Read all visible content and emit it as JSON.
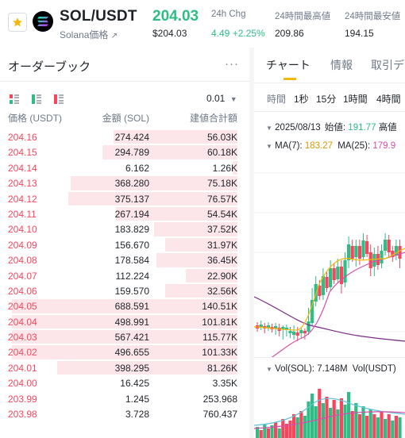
{
  "header": {
    "pair": "SOL/USDT",
    "coin_name": "Solana価格",
    "last_price": "204.03",
    "last_price_usd": "$204.03",
    "stats": [
      {
        "label": "24h Chg",
        "value": "4.49 +2.25%"
      },
      {
        "label": "24時間最高値",
        "value": "209.86"
      },
      {
        "label": "24時間最安値",
        "value": "194.15"
      }
    ]
  },
  "orderbook": {
    "title": "オーダーブック",
    "more": "···",
    "tick_size": "0.01",
    "columns": {
      "price": "価格 (USDT)",
      "amount": "金額 (SOL)",
      "total": "建値合計額"
    },
    "rows": [
      {
        "price": "204.16",
        "amount": "274.424",
        "total": "56.03K",
        "depth": 0.55,
        "side": "ask"
      },
      {
        "price": "204.15",
        "amount": "294.789",
        "total": "60.18K",
        "depth": 0.6,
        "side": "ask"
      },
      {
        "price": "204.14",
        "amount": "6.162",
        "total": "1.26K",
        "depth": 0.02,
        "side": "ask"
      },
      {
        "price": "204.13",
        "amount": "368.280",
        "total": "75.18K",
        "depth": 0.74,
        "side": "ask"
      },
      {
        "price": "204.12",
        "amount": "375.137",
        "total": "76.57K",
        "depth": 0.75,
        "side": "ask"
      },
      {
        "price": "204.11",
        "amount": "267.194",
        "total": "54.54K",
        "depth": 0.54,
        "side": "ask"
      },
      {
        "price": "204.10",
        "amount": "183.829",
        "total": "37.52K",
        "depth": 0.37,
        "side": "ask"
      },
      {
        "price": "204.09",
        "amount": "156.670",
        "total": "31.97K",
        "depth": 0.32,
        "side": "ask"
      },
      {
        "price": "204.08",
        "amount": "178.584",
        "total": "36.45K",
        "depth": 0.36,
        "side": "ask"
      },
      {
        "price": "204.07",
        "amount": "112.224",
        "total": "22.90K",
        "depth": 0.23,
        "side": "ask"
      },
      {
        "price": "204.06",
        "amount": "159.570",
        "total": "32.56K",
        "depth": 0.32,
        "side": "ask"
      },
      {
        "price": "204.05",
        "amount": "688.591",
        "total": "140.51K",
        "depth": 1.0,
        "side": "ask"
      },
      {
        "price": "204.04",
        "amount": "498.991",
        "total": "101.81K",
        "depth": 1.0,
        "side": "ask"
      },
      {
        "price": "204.03",
        "amount": "567.421",
        "total": "115.77K",
        "depth": 1.0,
        "side": "ask"
      },
      {
        "price": "204.02",
        "amount": "496.655",
        "total": "101.33K",
        "depth": 1.0,
        "side": "ask"
      },
      {
        "price": "204.01",
        "amount": "398.295",
        "total": "81.26K",
        "depth": 0.8,
        "side": "ask"
      },
      {
        "price": "204.00",
        "amount": "16.425",
        "total": "3.35K",
        "depth": 0,
        "side": "ask"
      },
      {
        "price": "203.99",
        "amount": "1.245",
        "total": "253.968",
        "depth": 0,
        "side": "ask"
      },
      {
        "price": "203.98",
        "amount": "3.728",
        "total": "760.437",
        "depth": 0,
        "side": "ask"
      }
    ]
  },
  "chart_panel": {
    "tabs": [
      "チャート",
      "情報",
      "取引デ"
    ],
    "intervals": [
      "時間",
      "1秒",
      "15分",
      "1時間",
      "4時間"
    ],
    "date_label": "2025/08/13",
    "open_label": "始値:",
    "open_value": "191.77",
    "high_label": "高値",
    "ma7_label": "MA(7):",
    "ma7_value": "183.27",
    "ma25_label": "MA(25):",
    "ma25_value": "179.9",
    "vol_label": "Vol(SOL):",
    "vol_value": "7.148M",
    "vol_usdt_label": "Vol(USDT)"
  },
  "colors": {
    "green": "#2ebd85",
    "red": "#f6465d",
    "accent": "#f0b90b",
    "ask_bar": "#fde6e9",
    "ma7": "#f0b90b",
    "ma25": "#d64fa8",
    "ma99": "#7a2b86"
  },
  "icons": {
    "favorite": "star-icon",
    "coin": "solana-logo-icon",
    "external": "external-link-icon",
    "tick_dropdown": "chevron-down-icon"
  }
}
